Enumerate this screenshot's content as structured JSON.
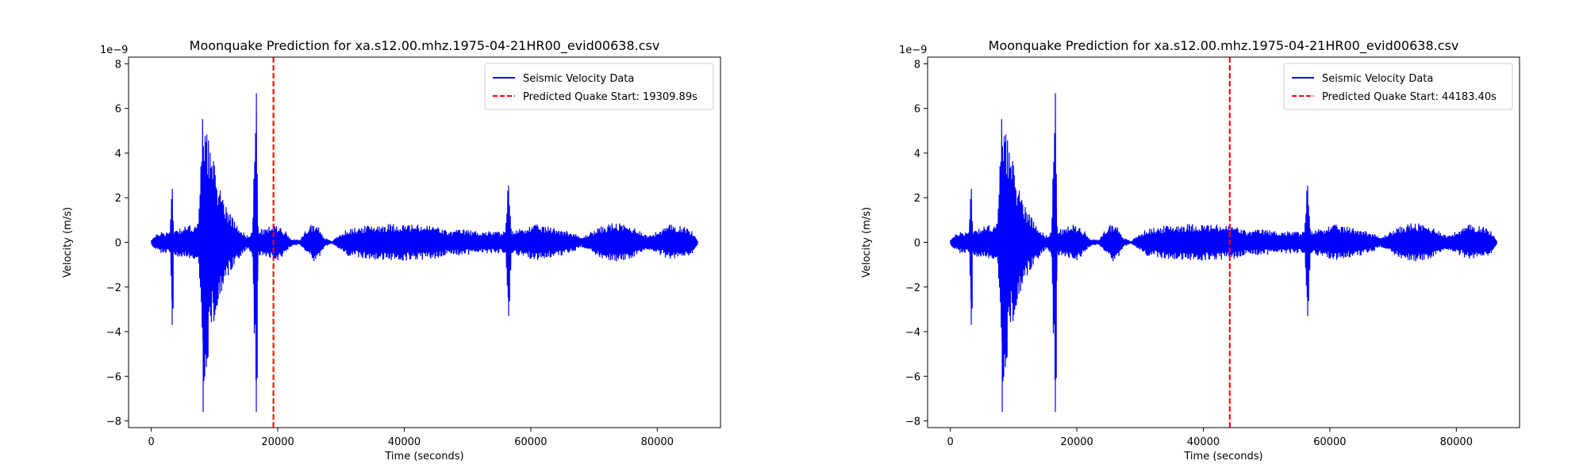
{
  "chart_data": [
    {
      "type": "line",
      "title": "Moonquake Prediction for xa.s12.00.mhz.1975-04-21HR00_evid00638.csv",
      "xlabel": "Time (seconds)",
      "ylabel": "Velocity (m/s)",
      "y_offset_label": "1e−9",
      "xlim": [
        -3600,
        90000
      ],
      "ylim": [
        -8.3,
        8.3
      ],
      "xticks": [
        0,
        20000,
        40000,
        60000,
        80000
      ],
      "yticks": [
        -8,
        -6,
        -4,
        -2,
        0,
        2,
        4,
        6,
        8
      ],
      "ytick_labels": [
        "−8",
        "−6",
        "−4",
        "−2",
        "0",
        "2",
        "4",
        "6",
        "8"
      ],
      "grid": false,
      "legend_position": "top-right",
      "series": [
        {
          "name": "Seismic Velocity Data",
          "color": "#0000ff",
          "style": "solid",
          "envelope": [
            [
              0,
              0.15
            ],
            [
              1500,
              0.5
            ],
            [
              3000,
              0.5
            ],
            [
              3300,
              4.1
            ],
            [
              3500,
              0.6
            ],
            [
              5000,
              0.7
            ],
            [
              7500,
              0.9
            ],
            [
              7900,
              4.5
            ],
            [
              8200,
              6.3
            ],
            [
              8600,
              6.2
            ],
            [
              9500,
              4.0
            ],
            [
              11000,
              2.4
            ],
            [
              12500,
              1.3
            ],
            [
              14000,
              0.7
            ],
            [
              15000,
              0.3
            ],
            [
              16000,
              0.5
            ],
            [
              16300,
              4.5
            ],
            [
              16600,
              7.4
            ],
            [
              16900,
              0.6
            ],
            [
              18000,
              0.6
            ],
            [
              19000,
              0.8
            ],
            [
              20000,
              0.8
            ],
            [
              21000,
              0.6
            ],
            [
              22000,
              0.2
            ],
            [
              23500,
              0.1
            ],
            [
              24500,
              0.6
            ],
            [
              25500,
              0.9
            ],
            [
              26500,
              0.7
            ],
            [
              27500,
              0.2
            ],
            [
              28500,
              0.05
            ],
            [
              29500,
              0.3
            ],
            [
              31000,
              0.6
            ],
            [
              33000,
              0.7
            ],
            [
              35000,
              0.8
            ],
            [
              38000,
              0.85
            ],
            [
              42000,
              0.8
            ],
            [
              45000,
              0.75
            ],
            [
              47000,
              0.5
            ],
            [
              49000,
              0.6
            ],
            [
              52000,
              0.5
            ],
            [
              54000,
              0.5
            ],
            [
              56000,
              0.5
            ],
            [
              56500,
              3.1
            ],
            [
              57000,
              0.5
            ],
            [
              59000,
              0.7
            ],
            [
              61000,
              0.8
            ],
            [
              63000,
              0.7
            ],
            [
              65000,
              0.6
            ],
            [
              67000,
              0.4
            ],
            [
              68000,
              0.2
            ],
            [
              69000,
              0.4
            ],
            [
              71000,
              0.7
            ],
            [
              73000,
              0.9
            ],
            [
              75000,
              0.8
            ],
            [
              77000,
              0.6
            ],
            [
              78500,
              0.3
            ],
            [
              80000,
              0.5
            ],
            [
              82000,
              0.8
            ],
            [
              84000,
              0.8
            ],
            [
              85500,
              0.5
            ],
            [
              86400,
              0.1
            ]
          ],
          "negative_peaks": [
            [
              3300,
              -3.7
            ],
            [
              8200,
              -7.6
            ],
            [
              16600,
              -7.6
            ],
            [
              56500,
              -3.3
            ]
          ]
        },
        {
          "name": "Predicted Quake Start: 19309.89s",
          "color": "#ff0000",
          "style": "dashed",
          "x": 19309.89
        }
      ]
    },
    {
      "type": "line",
      "title": "Moonquake Prediction for xa.s12.00.mhz.1975-04-21HR00_evid00638.csv",
      "xlabel": "Time (seconds)",
      "ylabel": "Velocity (m/s)",
      "y_offset_label": "1e−9",
      "xlim": [
        -3600,
        90000
      ],
      "ylim": [
        -8.3,
        8.3
      ],
      "xticks": [
        0,
        20000,
        40000,
        60000,
        80000
      ],
      "yticks": [
        -8,
        -6,
        -4,
        -2,
        0,
        2,
        4,
        6,
        8
      ],
      "ytick_labels": [
        "−8",
        "−6",
        "−4",
        "−2",
        "0",
        "2",
        "4",
        "6",
        "8"
      ],
      "grid": false,
      "legend_position": "top-right",
      "series": [
        {
          "name": "Seismic Velocity Data",
          "color": "#0000ff",
          "style": "solid",
          "envelope": [
            [
              0,
              0.15
            ],
            [
              1500,
              0.5
            ],
            [
              3000,
              0.5
            ],
            [
              3300,
              4.1
            ],
            [
              3500,
              0.6
            ],
            [
              5000,
              0.7
            ],
            [
              7500,
              0.9
            ],
            [
              7900,
              4.5
            ],
            [
              8200,
              6.3
            ],
            [
              8600,
              6.2
            ],
            [
              9500,
              4.0
            ],
            [
              11000,
              2.4
            ],
            [
              12500,
              1.3
            ],
            [
              14000,
              0.7
            ],
            [
              15000,
              0.3
            ],
            [
              16000,
              0.5
            ],
            [
              16300,
              4.5
            ],
            [
              16600,
              7.4
            ],
            [
              16900,
              0.6
            ],
            [
              18000,
              0.6
            ],
            [
              19000,
              0.8
            ],
            [
              20000,
              0.8
            ],
            [
              21000,
              0.6
            ],
            [
              22000,
              0.2
            ],
            [
              23500,
              0.1
            ],
            [
              24500,
              0.6
            ],
            [
              25500,
              0.9
            ],
            [
              26500,
              0.7
            ],
            [
              27500,
              0.2
            ],
            [
              28500,
              0.05
            ],
            [
              29500,
              0.3
            ],
            [
              31000,
              0.6
            ],
            [
              33000,
              0.7
            ],
            [
              35000,
              0.8
            ],
            [
              38000,
              0.85
            ],
            [
              42000,
              0.8
            ],
            [
              45000,
              0.75
            ],
            [
              47000,
              0.5
            ],
            [
              49000,
              0.6
            ],
            [
              52000,
              0.5
            ],
            [
              54000,
              0.5
            ],
            [
              56000,
              0.5
            ],
            [
              56500,
              3.1
            ],
            [
              57000,
              0.5
            ],
            [
              59000,
              0.7
            ],
            [
              61000,
              0.8
            ],
            [
              63000,
              0.7
            ],
            [
              65000,
              0.6
            ],
            [
              67000,
              0.4
            ],
            [
              68000,
              0.2
            ],
            [
              69000,
              0.4
            ],
            [
              71000,
              0.7
            ],
            [
              73000,
              0.9
            ],
            [
              75000,
              0.8
            ],
            [
              77000,
              0.6
            ],
            [
              78500,
              0.3
            ],
            [
              80000,
              0.5
            ],
            [
              82000,
              0.8
            ],
            [
              84000,
              0.8
            ],
            [
              85500,
              0.5
            ],
            [
              86400,
              0.1
            ]
          ],
          "negative_peaks": [
            [
              3300,
              -3.7
            ],
            [
              8200,
              -7.6
            ],
            [
              16600,
              -7.6
            ],
            [
              56500,
              -3.3
            ]
          ]
        },
        {
          "name": "Predicted Quake Start: 44183.40s",
          "color": "#ff0000",
          "style": "dashed",
          "x": 44183.4
        }
      ]
    }
  ]
}
